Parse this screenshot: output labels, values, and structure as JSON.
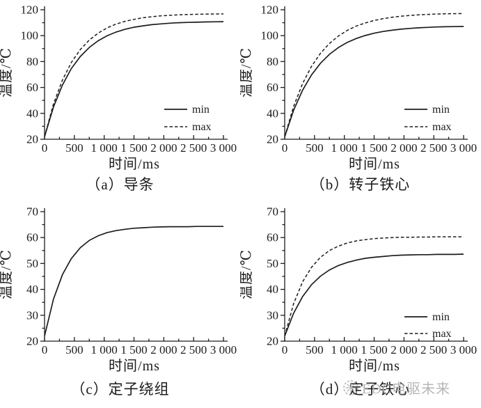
{
  "figure": {
    "background": "#ffffff",
    "line_color": "#1c1c1c",
    "watermark": {
      "icon": "edc-flower-logo",
      "text": "EDC电驱未来",
      "color": "#adadad"
    }
  },
  "chart_data": [
    {
      "id": "a",
      "type": "line",
      "caption": "（a）导条",
      "xlabel": "时间/ms",
      "ylabel": "温度/℃",
      "xlim": [
        0,
        3000
      ],
      "ylim": [
        20,
        120
      ],
      "xticks": [
        0,
        500,
        1000,
        1500,
        2000,
        2500,
        3000
      ],
      "xtick_labels": [
        "0",
        "500",
        "1 000",
        "1 500",
        "2 000",
        "2 500",
        "3 000"
      ],
      "yticks": [
        20,
        40,
        60,
        80,
        100,
        120
      ],
      "x_minor_step": 250,
      "y_minor_step": 10,
      "grid": false,
      "legend": {
        "show": true,
        "position": "lower-right",
        "entries": [
          "min",
          "max"
        ]
      },
      "x": [
        0,
        150,
        300,
        450,
        600,
        750,
        900,
        1050,
        1200,
        1350,
        1500,
        1650,
        1800,
        1950,
        2100,
        2250,
        2400,
        2550,
        2700,
        2850,
        3000
      ],
      "series": [
        {
          "name": "min",
          "style": "solid",
          "values": [
            22,
            44.9,
            61.9,
            74.6,
            83.9,
            90.9,
            96.1,
            99.9,
            102.8,
            104.9,
            106.5,
            107.6,
            108.5,
            109.1,
            109.6,
            110,
            110.2,
            110.4,
            110.6,
            110.7,
            110.8
          ]
        },
        {
          "name": "max",
          "style": "dashed",
          "values": [
            22,
            47.2,
            65.7,
            79.3,
            89.3,
            96.6,
            102,
            106,
            108.9,
            111.1,
            112.6,
            113.8,
            114.6,
            115.3,
            115.7,
            116.1,
            116.3,
            116.5,
            116.6,
            116.7,
            116.8
          ]
        }
      ]
    },
    {
      "id": "b",
      "type": "line",
      "caption": "（b）转子铁心",
      "xlabel": "时间/ms",
      "ylabel": "温度/℃",
      "xlim": [
        0,
        3000
      ],
      "ylim": [
        20,
        120
      ],
      "xticks": [
        0,
        500,
        1000,
        1500,
        2000,
        2500,
        3000
      ],
      "xtick_labels": [
        "0",
        "500",
        "1 000",
        "1 500",
        "2 000",
        "2 500",
        "3 000"
      ],
      "yticks": [
        20,
        40,
        60,
        80,
        100,
        120
      ],
      "x_minor_step": 250,
      "y_minor_step": 10,
      "grid": false,
      "legend": {
        "show": true,
        "position": "lower-right",
        "entries": [
          "min",
          "max"
        ]
      },
      "x": [
        0,
        150,
        300,
        450,
        600,
        750,
        900,
        1050,
        1200,
        1350,
        1500,
        1650,
        1800,
        1950,
        2100,
        2250,
        2400,
        2550,
        2700,
        2850,
        3000
      ],
      "series": [
        {
          "name": "min",
          "style": "solid",
          "values": [
            22,
            42.4,
            57.9,
            69.7,
            78.7,
            85.6,
            90.8,
            94.8,
            97.8,
            100.1,
            101.9,
            103.2,
            104.2,
            105,
            105.6,
            106.1,
            106.4,
            106.7,
            106.9,
            107,
            107.1
          ]
        },
        {
          "name": "max",
          "style": "dashed",
          "values": [
            22,
            45.3,
            63,
            76.3,
            86.4,
            94,
            99.7,
            104.1,
            107.4,
            109.8,
            111.7,
            113.1,
            114.2,
            115,
            115.6,
            116.1,
            116.4,
            116.7,
            116.9,
            117,
            117.1
          ]
        }
      ]
    },
    {
      "id": "c",
      "type": "line",
      "caption": "（c）定子绕组",
      "xlabel": "时间/ms",
      "ylabel": "温度/℃",
      "xlim": [
        0,
        3000
      ],
      "ylim": [
        20,
        70
      ],
      "xticks": [
        0,
        500,
        1000,
        1500,
        2000,
        2500,
        3000
      ],
      "xtick_labels": [
        "0",
        "500",
        "1 000",
        "1 500",
        "2 000",
        "2 500",
        "3 000"
      ],
      "yticks": [
        20,
        30,
        40,
        50,
        60,
        70
      ],
      "x_minor_step": 250,
      "y_minor_step": 5,
      "grid": false,
      "legend": {
        "show": false,
        "entries": []
      },
      "x": [
        0,
        150,
        300,
        450,
        600,
        750,
        900,
        1050,
        1200,
        1350,
        1500,
        1650,
        1800,
        1950,
        2100,
        2250,
        2400,
        2550,
        2700,
        2850,
        3000
      ],
      "series": [
        {
          "name": "",
          "style": "solid",
          "values": [
            22,
            36.2,
            45.7,
            51.9,
            56.1,
            58.9,
            60.7,
            61.9,
            62.7,
            63.2,
            63.6,
            63.8,
            64,
            64.1,
            64.2,
            64.2,
            64.2,
            64.3,
            64.3,
            64.3,
            64.3
          ]
        }
      ]
    },
    {
      "id": "d",
      "type": "line",
      "caption": "（d）定子铁心",
      "xlabel": "时间/ms",
      "ylabel": "温度/℃",
      "xlim": [
        0,
        3000
      ],
      "ylim": [
        20,
        70
      ],
      "xticks": [
        0,
        500,
        1000,
        1500,
        2000,
        2500,
        3000
      ],
      "xtick_labels": [
        "0",
        "500",
        "1 000",
        "1 500",
        "2 000",
        "2 500",
        "3 000"
      ],
      "yticks": [
        20,
        30,
        40,
        50,
        60,
        70
      ],
      "x_minor_step": 250,
      "y_minor_step": 5,
      "grid": false,
      "legend": {
        "show": true,
        "position": "lower-right",
        "entries": [
          "min",
          "max"
        ]
      },
      "x": [
        0,
        150,
        300,
        450,
        600,
        750,
        900,
        1050,
        1200,
        1350,
        1500,
        1650,
        1800,
        1950,
        2100,
        2250,
        2400,
        2550,
        2700,
        2850,
        3000
      ],
      "series": [
        {
          "name": "min",
          "style": "solid",
          "values": [
            22,
            30.8,
            37.2,
            41.8,
            45.1,
            47.5,
            49.2,
            50.4,
            51.3,
            52,
            52.4,
            52.7,
            53,
            53.2,
            53.3,
            53.4,
            53.4,
            53.5,
            53.5,
            53.5,
            53.6
          ]
        },
        {
          "name": "max",
          "style": "dashed",
          "values": [
            22,
            34.5,
            42.9,
            48.5,
            52.4,
            55,
            56.7,
            57.9,
            58.7,
            59.2,
            59.6,
            59.8,
            60,
            60.1,
            60.1,
            60.2,
            60.2,
            60.3,
            60.3,
            60.3,
            60.3
          ]
        }
      ]
    }
  ]
}
